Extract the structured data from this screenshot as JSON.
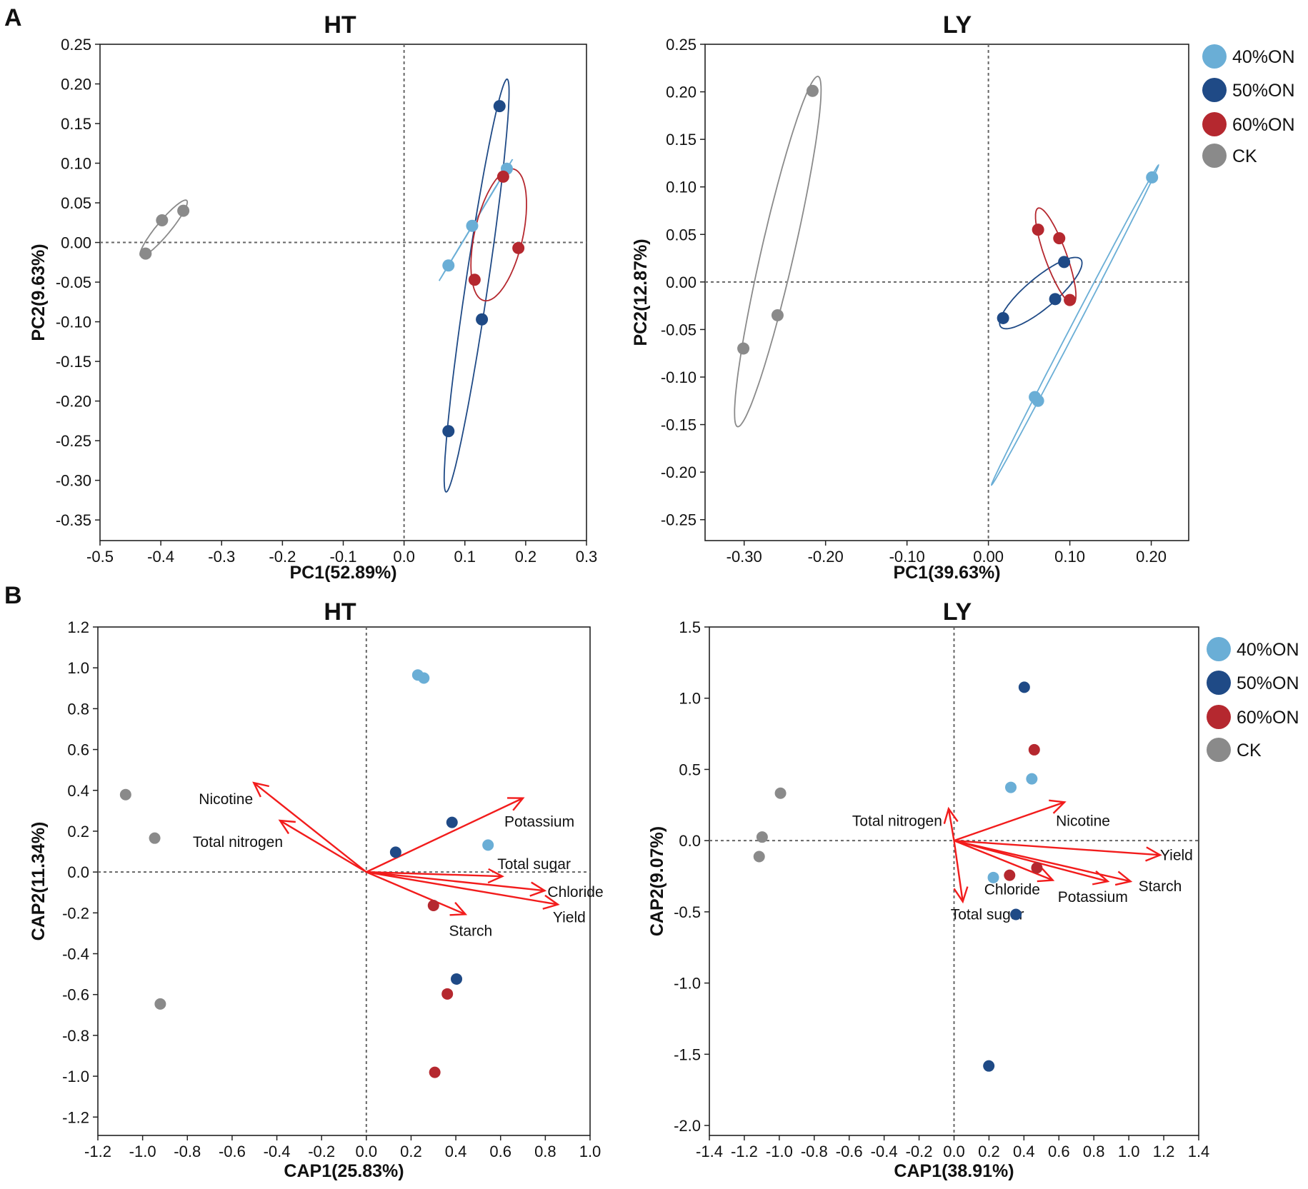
{
  "panel_letters": [
    "A",
    "B"
  ],
  "groups": [
    {
      "name": "40%ON",
      "color": "#6aaed6"
    },
    {
      "name": "50%ON",
      "color": "#1f4a86"
    },
    {
      "name": "60%ON",
      "color": "#b5282f"
    },
    {
      "name": "CK",
      "color": "#8a8a8a"
    }
  ],
  "arrow_color": "#f21c1c",
  "chart_data": [
    {
      "type": "scatter",
      "panel": "A",
      "title": "HT",
      "xlabel": "PC1(52.89%)",
      "ylabel": "PC2(9.63%)",
      "xlim": [
        -0.5,
        0.3
      ],
      "ylim": [
        -0.376,
        0.25
      ],
      "xticks": [
        "-0.5",
        "-0.4",
        "-0.3",
        "-0.2",
        "-0.1",
        "0.0",
        "0.1",
        "0.2",
        "0.3"
      ],
      "yticks": [
        "0.25",
        "0.20",
        "0.15",
        "0.10",
        "0.05",
        "0.00",
        "-0.05",
        "-0.10",
        "-0.15",
        "-0.20",
        "-0.25",
        "-0.30",
        "-0.35"
      ],
      "ellipses": true,
      "series": [
        {
          "name": "40%ON",
          "points": [
            [
              0.073,
              -0.029
            ],
            [
              0.112,
              0.021
            ],
            [
              0.169,
              0.093
            ]
          ]
        },
        {
          "name": "50%ON",
          "points": [
            [
              0.157,
              0.172
            ],
            [
              0.128,
              -0.097
            ],
            [
              0.073,
              -0.238
            ]
          ]
        },
        {
          "name": "60%ON",
          "points": [
            [
              0.163,
              0.083
            ],
            [
              0.188,
              -0.007
            ],
            [
              0.116,
              -0.047
            ]
          ]
        },
        {
          "name": "CK",
          "points": [
            [
              -0.425,
              -0.014
            ],
            [
              -0.398,
              0.028
            ],
            [
              -0.363,
              0.04
            ]
          ]
        }
      ]
    },
    {
      "type": "scatter",
      "panel": "A",
      "title": "LY",
      "xlabel": "PC1(39.63%)",
      "ylabel": "PC2(12.87%)",
      "xlim": [
        -0.348,
        0.246
      ],
      "ylim": [
        -0.272,
        0.25
      ],
      "xticks": [
        "-0.30",
        "-0.20",
        "-0.10",
        "0.00",
        "0.10",
        "0.20"
      ],
      "yticks": [
        "0.25",
        "0.20",
        "0.15",
        "0.10",
        "0.05",
        "0.00",
        "-0.05",
        "-0.10",
        "-0.15",
        "-0.20",
        "-0.25"
      ],
      "ellipses": true,
      "legend": "right",
      "series": [
        {
          "name": "40%ON",
          "points": [
            [
              0.201,
              0.11
            ],
            [
              0.057,
              -0.121
            ],
            [
              0.061,
              -0.125
            ]
          ]
        },
        {
          "name": "50%ON",
          "points": [
            [
              0.093,
              0.021
            ],
            [
              0.082,
              -0.018
            ],
            [
              0.018,
              -0.038
            ]
          ]
        },
        {
          "name": "60%ON",
          "points": [
            [
              0.061,
              0.055
            ],
            [
              0.087,
              0.046
            ],
            [
              0.1,
              -0.019
            ]
          ]
        },
        {
          "name": "CK",
          "points": [
            [
              -0.216,
              0.201
            ],
            [
              -0.259,
              -0.035
            ],
            [
              -0.301,
              -0.07
            ]
          ]
        }
      ]
    },
    {
      "type": "scatter",
      "panel": "B",
      "title": "HT",
      "xlabel": "CAP1(25.83%)",
      "ylabel": "CAP2(11.34%)",
      "xlim": [
        -1.2,
        1.0
      ],
      "ylim": [
        -1.29,
        1.2
      ],
      "xticks": [
        "-1.2",
        "-1.0",
        "-0.8",
        "-0.6",
        "-0.4",
        "-0.2",
        "0.0",
        "0.2",
        "0.4",
        "0.6",
        "0.8",
        "1.0"
      ],
      "yticks": [
        "1.2",
        "1.0",
        "0.8",
        "0.6",
        "0.4",
        "0.2",
        "0.0",
        "-0.2",
        "-0.4",
        "-0.6",
        "-0.8",
        "-1.0",
        "-1.2"
      ],
      "series": [
        {
          "name": "40%ON",
          "points": [
            [
              0.23,
              0.965
            ],
            [
              0.257,
              0.95
            ],
            [
              0.544,
              0.132
            ]
          ]
        },
        {
          "name": "50%ON",
          "points": [
            [
              0.131,
              0.097
            ],
            [
              0.383,
              0.243
            ],
            [
              0.403,
              -0.524
            ]
          ]
        },
        {
          "name": "60%ON",
          "points": [
            [
              0.3,
              -0.164
            ],
            [
              0.362,
              -0.597
            ],
            [
              0.306,
              -0.981
            ]
          ]
        },
        {
          "name": "CK",
          "points": [
            [
              -1.076,
              0.379
            ],
            [
              -0.946,
              0.166
            ],
            [
              -0.921,
              -0.646
            ]
          ]
        }
      ],
      "vectors": [
        {
          "label": "Nicotine",
          "x": -0.503,
          "y": 0.437
        },
        {
          "label": "Total nitrogen",
          "x": -0.386,
          "y": 0.252
        },
        {
          "label": "Potassium",
          "x": 0.7,
          "y": 0.362
        },
        {
          "label": "Total sugar",
          "x": 0.608,
          "y": -0.021
        },
        {
          "label": "Chloride",
          "x": 0.797,
          "y": -0.091
        },
        {
          "label": "Yield",
          "x": 0.856,
          "y": -0.159
        },
        {
          "label": "Starch",
          "x": 0.443,
          "y": -0.207
        }
      ]
    },
    {
      "type": "scatter",
      "panel": "B",
      "title": "LY",
      "xlabel": "CAP1(38.91%)",
      "ylabel": "CAP2(9.07%)",
      "xlim": [
        -1.4,
        1.4
      ],
      "ylim": [
        -2.07,
        1.5
      ],
      "xticks": [
        "-1.4",
        "-1.2",
        "-1.0",
        "-0.8",
        "-0.6",
        "-0.4",
        "-0.2",
        "0.0",
        "0.2",
        "0.4",
        "0.6",
        "0.8",
        "1.0",
        "1.2",
        "1.4"
      ],
      "yticks": [
        "1.5",
        "1.0",
        "0.5",
        "0.0",
        "-0.5",
        "-1.0",
        "-1.5",
        "-2.0"
      ],
      "legend": "right",
      "series": [
        {
          "name": "40%ON",
          "points": [
            [
              0.325,
              0.374
            ],
            [
              0.445,
              0.434
            ],
            [
              0.225,
              -0.259
            ]
          ]
        },
        {
          "name": "50%ON",
          "points": [
            [
              0.402,
              1.077
            ],
            [
              0.354,
              -0.518
            ],
            [
              0.199,
              -1.582
            ]
          ]
        },
        {
          "name": "60%ON",
          "points": [
            [
              0.459,
              0.638
            ],
            [
              0.318,
              -0.243
            ],
            [
              0.474,
              -0.191
            ]
          ]
        },
        {
          "name": "CK",
          "points": [
            [
              -0.993,
              0.333
            ],
            [
              -1.098,
              0.025
            ],
            [
              -1.115,
              -0.112
            ]
          ]
        }
      ],
      "vectors": [
        {
          "label": "Total nitrogen",
          "x": -0.031,
          "y": 0.224
        },
        {
          "label": "Nicotine",
          "x": 0.632,
          "y": 0.27
        },
        {
          "label": "Yield",
          "x": 1.179,
          "y": -0.101
        },
        {
          "label": "Starch",
          "x": 1.01,
          "y": -0.286
        },
        {
          "label": "Potassium",
          "x": 0.88,
          "y": -0.286
        },
        {
          "label": "Chloride",
          "x": 0.565,
          "y": -0.278
        },
        {
          "label": "Total sugar",
          "x": 0.05,
          "y": -0.428
        }
      ]
    }
  ]
}
